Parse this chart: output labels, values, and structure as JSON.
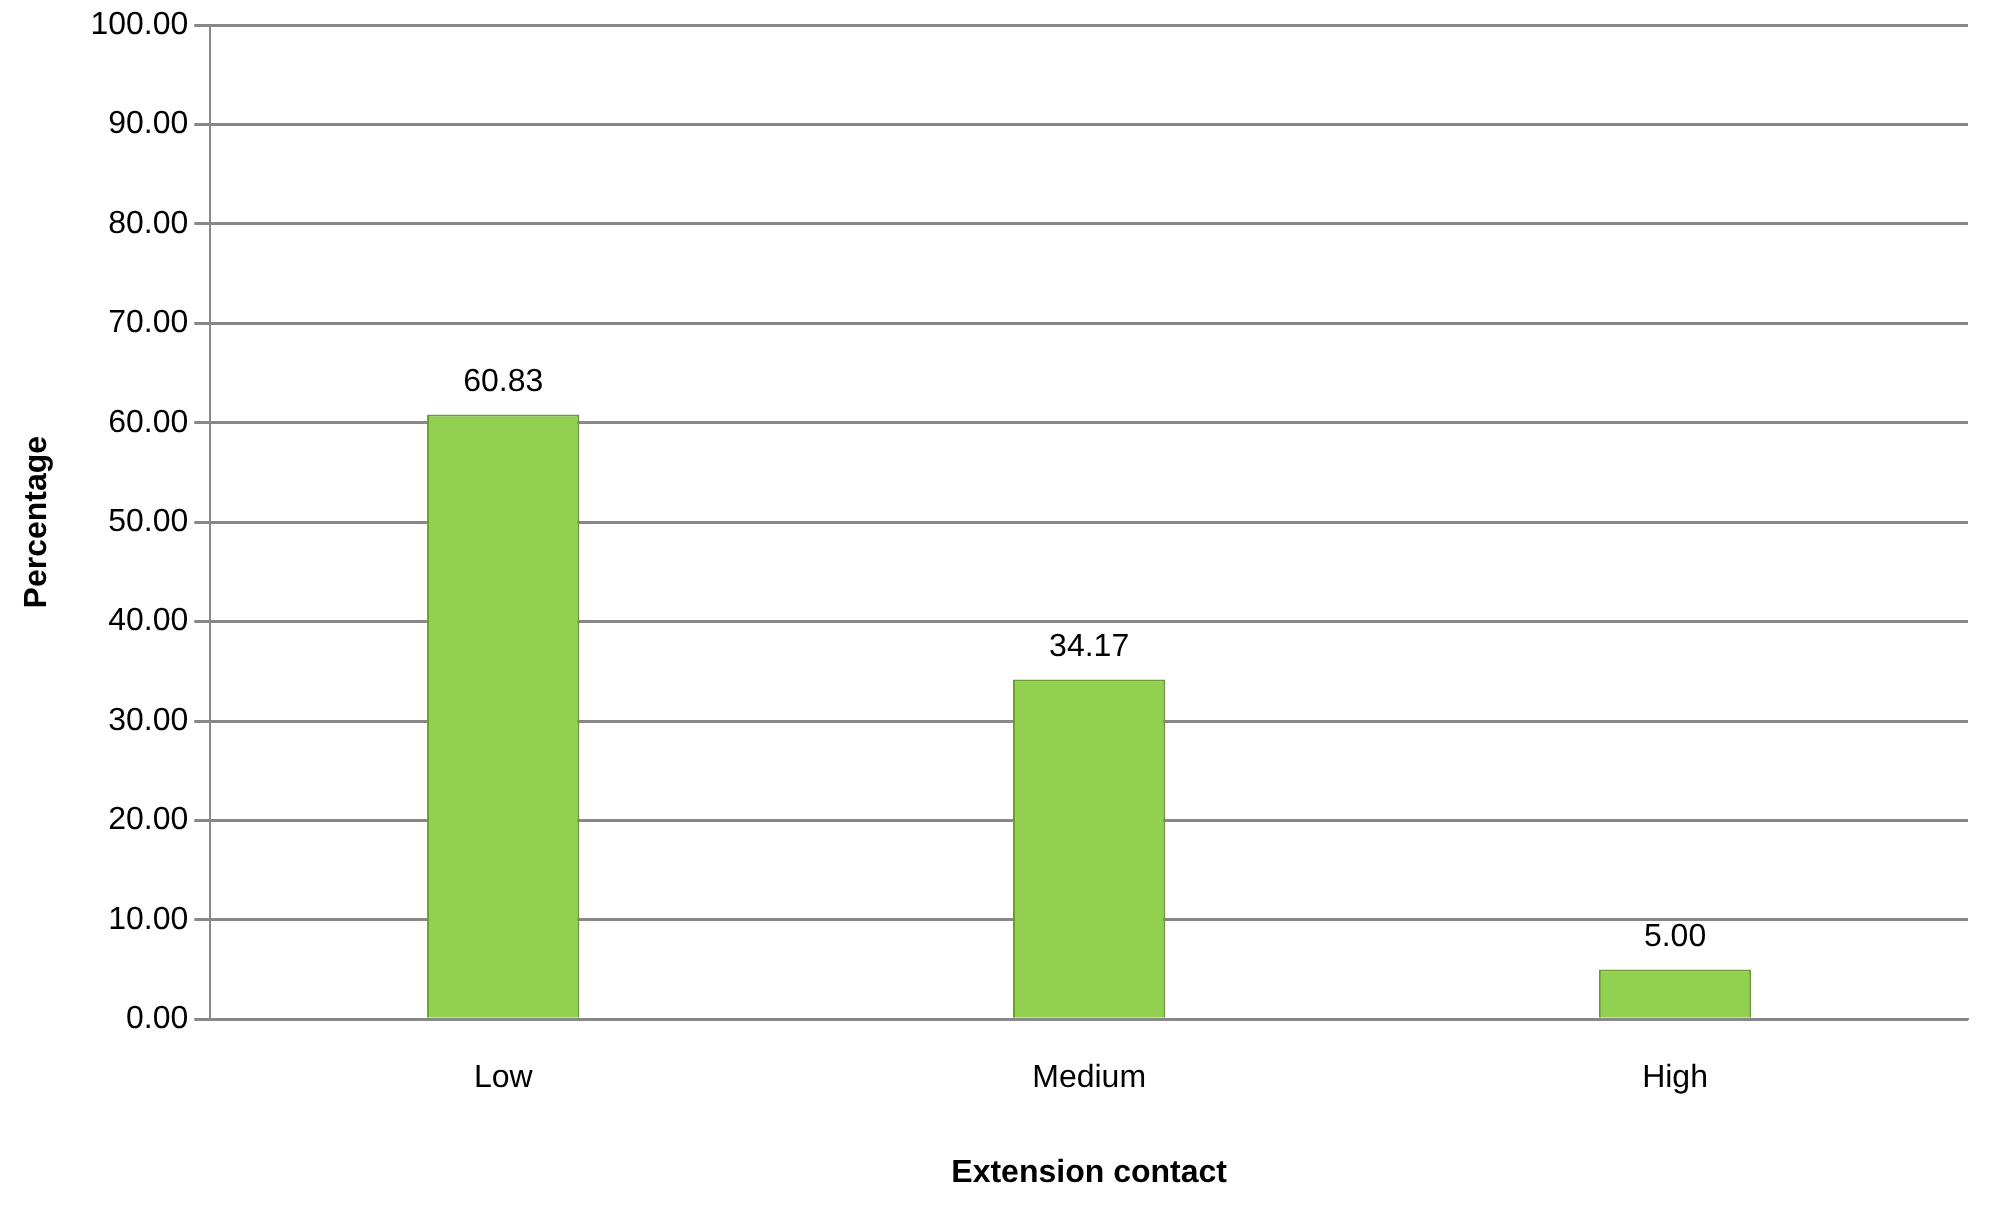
{
  "chart_data": {
    "type": "bar",
    "xlabel": "Extension contact",
    "ylabel": "Percentage",
    "categories": [
      "Low",
      "Medium",
      "High"
    ],
    "values": [
      60.83,
      34.17,
      5.0
    ],
    "color": "#92d050",
    "value_labels": [
      "60.83",
      "34.17",
      "5.00"
    ],
    "ylim": [
      0,
      100
    ],
    "yticks": [
      {
        "value": 0,
        "label": "0.00"
      },
      {
        "value": 10,
        "label": "10.00"
      },
      {
        "value": 20,
        "label": "20.00"
      },
      {
        "value": 30,
        "label": "30.00"
      },
      {
        "value": 40,
        "label": "40.00"
      },
      {
        "value": 50,
        "label": "50.00"
      },
      {
        "value": 60,
        "label": "60.00"
      },
      {
        "value": 70,
        "label": "70.00"
      },
      {
        "value": 80,
        "label": "80.00"
      },
      {
        "value": 90,
        "label": "90.00"
      },
      {
        "value": 100,
        "label": "100.00"
      }
    ],
    "grid": "y",
    "legend": false
  }
}
